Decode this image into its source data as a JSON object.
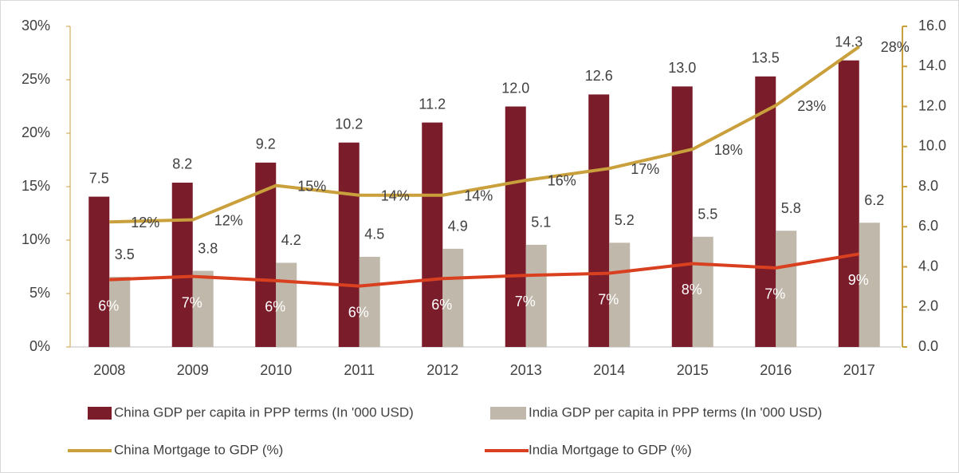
{
  "chart_data": {
    "type": "bar_line_combo",
    "categories": [
      "2008",
      "2009",
      "2010",
      "2011",
      "2012",
      "2013",
      "2014",
      "2015",
      "2016",
      "2017"
    ],
    "ylim": [
      0,
      30
    ],
    "yticks": [
      {
        "value": 0,
        "label": "0%"
      },
      {
        "value": 5,
        "label": "5%"
      },
      {
        "value": 10,
        "label": "10%"
      },
      {
        "value": 15,
        "label": "15%"
      },
      {
        "value": 20,
        "label": "20%"
      },
      {
        "value": 25,
        "label": "25%"
      },
      {
        "value": 30,
        "label": "30%"
      }
    ],
    "y2lim": [
      0,
      16
    ],
    "y2ticks": [
      {
        "value": 0,
        "label": "0.0"
      },
      {
        "value": 2,
        "label": "2.0"
      },
      {
        "value": 4,
        "label": "4.0"
      },
      {
        "value": 6,
        "label": "6.0"
      },
      {
        "value": 8,
        "label": "8.0"
      },
      {
        "value": 10,
        "label": "10.0"
      },
      {
        "value": 12,
        "label": "12.0"
      },
      {
        "value": 14,
        "label": "14.0"
      },
      {
        "value": 16,
        "label": "16.0"
      }
    ],
    "series": [
      {
        "name": "China GDP per capita in PPP terms (In '000 USD)",
        "type": "bar",
        "axis": "y2",
        "color": "#7b1c2a",
        "values": [
          7.5,
          8.2,
          9.2,
          10.2,
          11.2,
          12.0,
          12.6,
          13.0,
          13.5,
          14.3
        ],
        "value_labels": [
          "7.5",
          "8.2",
          "9.2",
          "10.2",
          "11.2",
          "12.0",
          "12.6",
          "13.0",
          "13.5",
          "14.3"
        ]
      },
      {
        "name": "India GDP per capita in PPP terms (In '000 USD)",
        "type": "bar",
        "axis": "y2",
        "color": "#c0b8aa",
        "values": [
          3.5,
          3.8,
          4.2,
          4.5,
          4.9,
          5.1,
          5.2,
          5.5,
          5.8,
          6.2
        ],
        "value_labels": [
          "3.5",
          "3.8",
          "4.2",
          "4.5",
          "4.9",
          "5.1",
          "5.2",
          "5.5",
          "5.8",
          "6.2"
        ]
      },
      {
        "name": "China Mortgage to GDP (%)",
        "type": "line",
        "color": "#c9a03c",
        "values": [
          11.7,
          11.9,
          15.1,
          14.2,
          14.2,
          15.6,
          16.7,
          18.5,
          22.6,
          28.1
        ],
        "value_labels": [
          "12%",
          "12%",
          "15%",
          "14%",
          "14%",
          "16%",
          "17%",
          "18%",
          "23%",
          "28%"
        ]
      },
      {
        "name": "India Mortgage to GDP (%)",
        "type": "line",
        "color": "#d9401f",
        "values": [
          6.3,
          6.6,
          6.2,
          5.7,
          6.4,
          6.7,
          6.9,
          7.8,
          7.4,
          8.7
        ],
        "value_labels": [
          "6%",
          "7%",
          "6%",
          "6%",
          "6%",
          "7%",
          "7%",
          "8%",
          "7%",
          "9%"
        ]
      }
    ]
  }
}
